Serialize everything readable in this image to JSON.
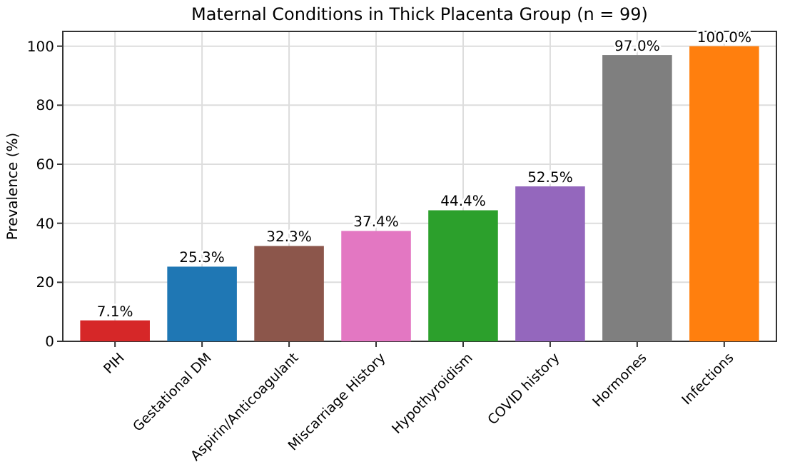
{
  "chart_data": {
    "type": "bar",
    "title": "Maternal Conditions in Thick Placenta Group (n = 99)",
    "ylabel": "Prevalence (%)",
    "categories": [
      "PIH",
      "Gestational DM",
      "Aspirin/Anticoagulant",
      "Miscarriage History",
      "Hypothyroidism",
      "COVID history",
      "Hormones",
      "Infections"
    ],
    "values": [
      7.1,
      25.3,
      32.3,
      37.4,
      44.4,
      52.5,
      97.0,
      100.0
    ],
    "value_labels": [
      "7.1%",
      "25.3%",
      "32.3%",
      "37.4%",
      "44.4%",
      "52.5%",
      "97.0%",
      "100.0%"
    ],
    "colors": [
      "#d62728",
      "#1f77b4",
      "#8c564b",
      "#e377c2",
      "#2ca02c",
      "#9467bd",
      "#7f7f7f",
      "#ff7f0e"
    ],
    "ylim": [
      0,
      105
    ],
    "yticks": [
      0,
      20,
      40,
      60,
      80,
      100
    ],
    "grid": true
  }
}
